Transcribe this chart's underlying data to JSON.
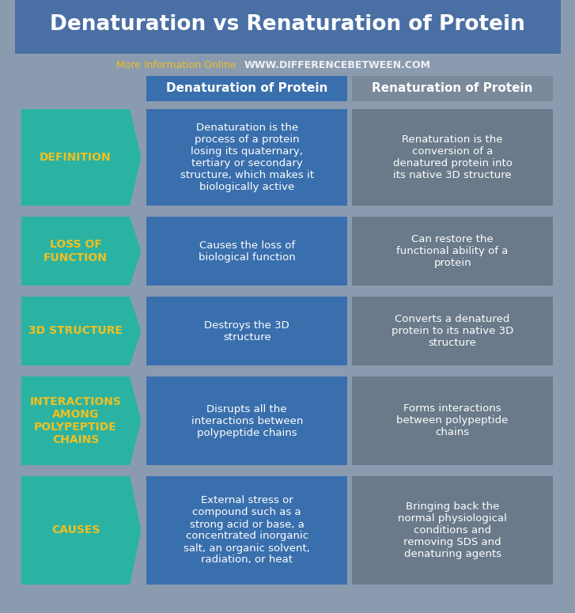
{
  "title": "Denaturation vs Renaturation of Protein",
  "subtitle_regular": "More Information Online",
  "subtitle_bold": "WWW.DIFFERENCEBETWEEN.COM",
  "col1_header": "Denaturation of Protein",
  "col2_header": "Renaturation of Protein",
  "bg_color": "#8a9bb0",
  "title_bg_color": "#4a6fa5",
  "header_col1_color": "#3a6fad",
  "header_col2_color": "#7a8a9a",
  "cell_col1_color": "#3a6fad",
  "cell_col2_color": "#6a7a8a",
  "arrow_color": "#2ab3a3",
  "arrow_text_color": "#f0c020",
  "title_text_color": "#ffffff",
  "subtitle_regular_color": "#f0c020",
  "subtitle_bold_color": "#f0f0f0",
  "header_text_color": "#ffffff",
  "cell_text_color": "#ffffff",
  "rows": [
    {
      "label": "DEFINITION",
      "col1": "Denaturation is the\nprocess of a protein\nlosing its quaternary,\ntertiary or secondary\nstructure, which makes it\nbiologically active",
      "col2": "Renaturation is the\nconversion of a\ndenatured protein into\nits native 3D structure"
    },
    {
      "label": "LOSS OF\nFUNCTION",
      "col1": "Causes the loss of\nbiological function",
      "col2": "Can restore the\nfunctional ability of a\nprotein"
    },
    {
      "label": "3D STRUCTURE",
      "col1": "Destroys the 3D\nstructure",
      "col2": "Converts a denatured\nprotein to its native 3D\nstructure"
    },
    {
      "label": "INTERACTIONS\nAMONG\nPOLYPEPTIDE\nCHAINS",
      "col1": "Disrupts all the\ninteractions between\npolypeptide chains",
      "col2": "Forms interactions\nbetween polypeptide\nchains"
    },
    {
      "label": "CAUSES",
      "col1": "External stress or\ncompound such as a\nstrong acid or base, a\nconcentrated inorganic\nsalt, an organic solvent,\nradiation, or heat",
      "col2": "Bringing back the\nnormal physiological\nconditions and\nremoving SDS and\ndenaturing agents"
    }
  ]
}
